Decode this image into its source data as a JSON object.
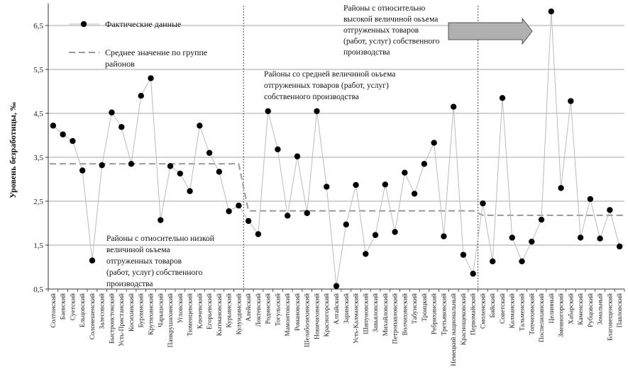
{
  "chart_data": {
    "type": "line",
    "ylabel": "Уровень безработицы, ‰",
    "ylim": [
      0.5,
      7.0
    ],
    "yticks": [
      "0,5",
      "1,5",
      "2,5",
      "3,5",
      "4,5",
      "5,5",
      "6,5"
    ],
    "ytick_values": [
      0.5,
      1.5,
      2.5,
      3.5,
      4.5,
      5.5,
      6.5
    ],
    "grid": true,
    "categories": [
      "Солтонский",
      "Баевский",
      "Суетский",
      "Ельцовский",
      "Солонешенский",
      "Залесовский",
      "Быстроистокский",
      "Усть-Пристанский",
      "Косихинский",
      "Бурлинский",
      "Крутихинский",
      "Чарышский",
      "Панкрушихинский",
      "Угловский",
      "Тюменцевский",
      "Ключевский",
      "Егорьевский",
      "Кытмановский",
      "Курьинский",
      "Кулундинский",
      "Алейский",
      "Локтевский",
      "Родинский",
      "Тогульский",
      "Мамонтовский",
      "Романовский",
      "Шелаболихинский",
      "Новичихинский",
      "Красногорский",
      "Алтайский",
      "Заринский",
      "Усть-Калманский",
      "Шипуновский",
      "Завьяловский",
      "Михайловский",
      "Петропавловский",
      "Волчихинский",
      "Табунский",
      "Троицкий",
      "Ребрихинский",
      "Третьяковский",
      "Немецкий национальный",
      "Краснощековский",
      "Первомайский",
      "Смоленский",
      "Бийский",
      "Советский",
      "Калманский",
      "Тальменский",
      "Топчихинский",
      "Поспелихинский",
      "Целинный",
      "Змеиногорский",
      "Хабарский",
      "Каменский",
      "Рубцовский",
      "Зональный",
      "Благовещенский",
      "Павловский"
    ],
    "series": [
      {
        "name": "Фактические данные",
        "values": [
          4.22,
          4.02,
          3.87,
          3.2,
          1.15,
          3.32,
          4.52,
          4.19,
          3.35,
          4.9,
          5.3,
          2.07,
          3.3,
          3.13,
          2.73,
          4.22,
          3.6,
          3.17,
          2.27,
          2.4,
          2.05,
          1.75,
          4.55,
          3.68,
          2.17,
          3.52,
          2.23,
          4.55,
          2.83,
          0.57,
          1.97,
          2.87,
          1.3,
          1.73,
          2.88,
          1.8,
          3.15,
          2.67,
          3.35,
          3.83,
          1.7,
          4.65,
          1.28,
          0.85,
          2.45,
          1.13,
          4.85,
          1.67,
          1.13,
          1.58,
          2.08,
          6.82,
          2.8,
          4.78,
          1.67,
          2.55,
          1.65,
          2.3,
          1.47
        ]
      },
      {
        "name": "Среднее значение по группе районов",
        "values": [
          3.35,
          3.35,
          3.35,
          3.35,
          3.35,
          3.35,
          3.35,
          3.35,
          3.35,
          3.35,
          3.35,
          3.35,
          3.35,
          3.35,
          3.35,
          3.35,
          3.35,
          3.35,
          3.35,
          3.35,
          2.28,
          2.28,
          2.28,
          2.28,
          2.28,
          2.28,
          2.28,
          2.28,
          2.28,
          2.28,
          2.28,
          2.28,
          2.28,
          2.28,
          2.28,
          2.28,
          2.28,
          2.28,
          2.28,
          2.28,
          2.28,
          2.28,
          2.28,
          2.28,
          2.18,
          2.18,
          2.18,
          2.18,
          2.18,
          2.18,
          2.18,
          2.18,
          2.18,
          2.18,
          2.18,
          2.18,
          2.18,
          2.18,
          2.18
        ]
      }
    ],
    "annotations": {
      "low": [
        "Районы с относительно низкой",
        "величиной оьъема",
        "отгруженных товаров",
        "(работ, услуг) собственного",
        "производства"
      ],
      "mid": [
        "Районы со средней величиной оьъема",
        "отгруженных товаров (работ, услуг)",
        "собственного производства"
      ],
      "high": [
        "Районы с относительно",
        "высокой величиной оьъема",
        "отгруженных товаров",
        "(работ, услуг)  собственного",
        "производства"
      ]
    },
    "legend": {
      "position": "top-left",
      "actual": "Фактические данные",
      "mean_line1": "Среднее значение по группе",
      "mean_line2": "районов"
    },
    "colors": {
      "line": "#bbbbbb",
      "marker": "#000000",
      "mean": "#999999",
      "grid": "#888888",
      "divider": "#444444",
      "arrow_fill": "#b0b0b0",
      "arrow_stroke": "#555555"
    }
  }
}
